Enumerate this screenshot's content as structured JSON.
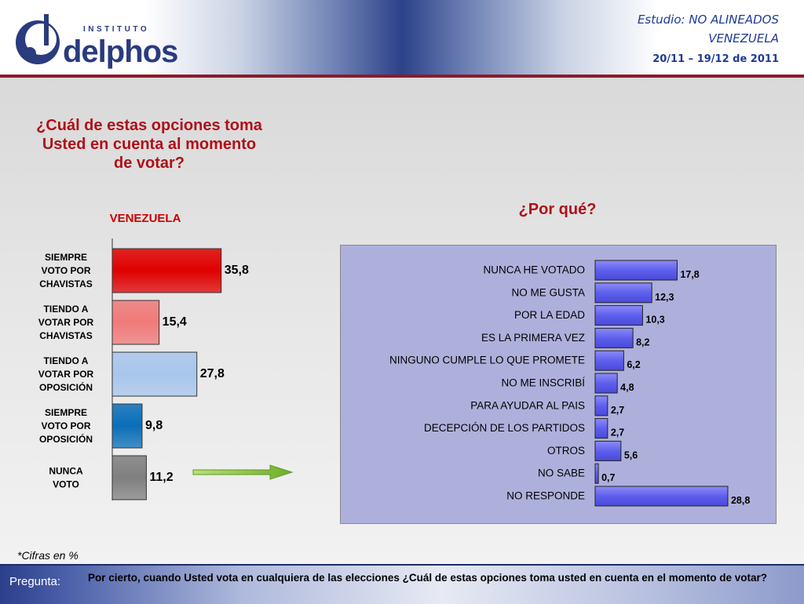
{
  "header": {
    "logo_top": "INSTITUTO",
    "logo_name": "delphos",
    "study_line1": "Estudio: NO ALINEADOS",
    "study_line2": "VENEZUELA",
    "dates": "20/11 – 19/12 de 2011"
  },
  "question_title": "¿Cuál de estas opciones toma Usted en cuenta al momento de votar?",
  "why_title": "¿Por qué?",
  "footnote": "*Cifras en %",
  "footer": {
    "label": "Pregunta:",
    "text": "Por cierto, cuando Usted vota en cualquiera de las elecciones ¿Cuál de estas opciones toma usted en cuenta en el momento de votar?"
  },
  "colors": {
    "accent_red": "#b01018",
    "brand_blue": "#2a3b7e",
    "right_bar": "#6e6ef2",
    "arrow": "#8ac43f"
  },
  "chart_data": [
    {
      "type": "bar",
      "orientation": "horizontal",
      "title": "",
      "series_label": "VENEZUELA",
      "categories": [
        [
          "SIEMPRE",
          "VOTO POR",
          "CHAVISTAS"
        ],
        [
          "TIENDO A",
          "VOTAR POR",
          "CHAVISTAS"
        ],
        [
          "TIENDO A",
          "VOTAR POR",
          "OPOSICIÓN"
        ],
        [
          "SIEMPRE",
          "VOTO POR",
          "OPOSICIÓN"
        ],
        [
          "NUNCA",
          "VOTO"
        ]
      ],
      "values": [
        35.8,
        15.4,
        27.8,
        9.8,
        11.2
      ],
      "value_labels": [
        "35,8",
        "15,4",
        "27,8",
        "9,8",
        "11,2"
      ],
      "bar_colors": [
        "#e00000",
        "#f07a7a",
        "#a8c6ec",
        "#0a6eb8",
        "#7f7f7f"
      ],
      "xlim": [
        0,
        40
      ],
      "unit": "%"
    },
    {
      "type": "bar",
      "orientation": "horizontal",
      "title": "",
      "categories": [
        "NUNCA HE VOTADO",
        "NO ME GUSTA",
        "POR LA EDAD",
        "ES LA PRIMERA VEZ",
        "NINGUNO CUMPLE LO QUE PROMETE",
        "NO ME INSCRIBÍ",
        "PARA AYUDAR AL PAIS",
        "DECEPCIÓN DE LOS PARTIDOS",
        "OTROS",
        "NO SABE",
        "NO RESPONDE"
      ],
      "values": [
        17.8,
        12.3,
        10.3,
        8.2,
        6.2,
        4.8,
        2.7,
        2.7,
        5.6,
        0.7,
        28.8
      ],
      "value_labels": [
        "17,8",
        "12,3",
        "10,3",
        "8,2",
        "6,2",
        "4,8",
        "2,7",
        "2,7",
        "5,6",
        "0,7",
        "28,8"
      ],
      "xlim": [
        0,
        30
      ],
      "unit": "%"
    }
  ]
}
